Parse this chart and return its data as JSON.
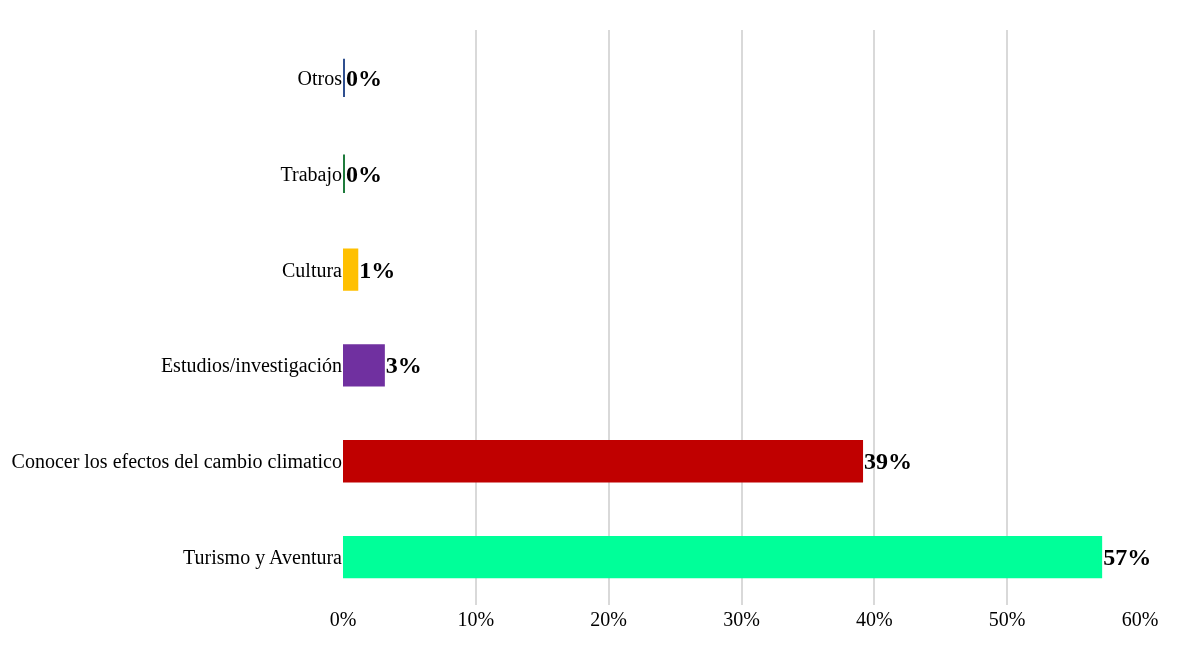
{
  "chart_data": {
    "type": "bar",
    "orientation": "horizontal",
    "categories": [
      "Otros",
      "Trabajo",
      "Cultura",
      "Estudios/investigación",
      "Conocer los efectos del cambio climatico",
      "Turismo y Aventura"
    ],
    "values": [
      0,
      0,
      1,
      3,
      39,
      57
    ],
    "colors": [
      "#2f4f8f",
      "#1e7b3c",
      "#ffc000",
      "#7030a0",
      "#c00000",
      "#00ff99"
    ],
    "value_labels": [
      "0%",
      "0%",
      "1%",
      "3%",
      "39%",
      "57%"
    ],
    "xlim": [
      0,
      60
    ],
    "xticks": [
      {
        "value": 0,
        "label": "0%"
      },
      {
        "value": 10,
        "label": "10%"
      },
      {
        "value": 20,
        "label": "20%"
      },
      {
        "value": 30,
        "label": "30%"
      },
      {
        "value": 40,
        "label": "40%"
      },
      {
        "value": 50,
        "label": "50%"
      },
      {
        "value": 60,
        "label": "60%"
      }
    ],
    "grid": "x"
  }
}
